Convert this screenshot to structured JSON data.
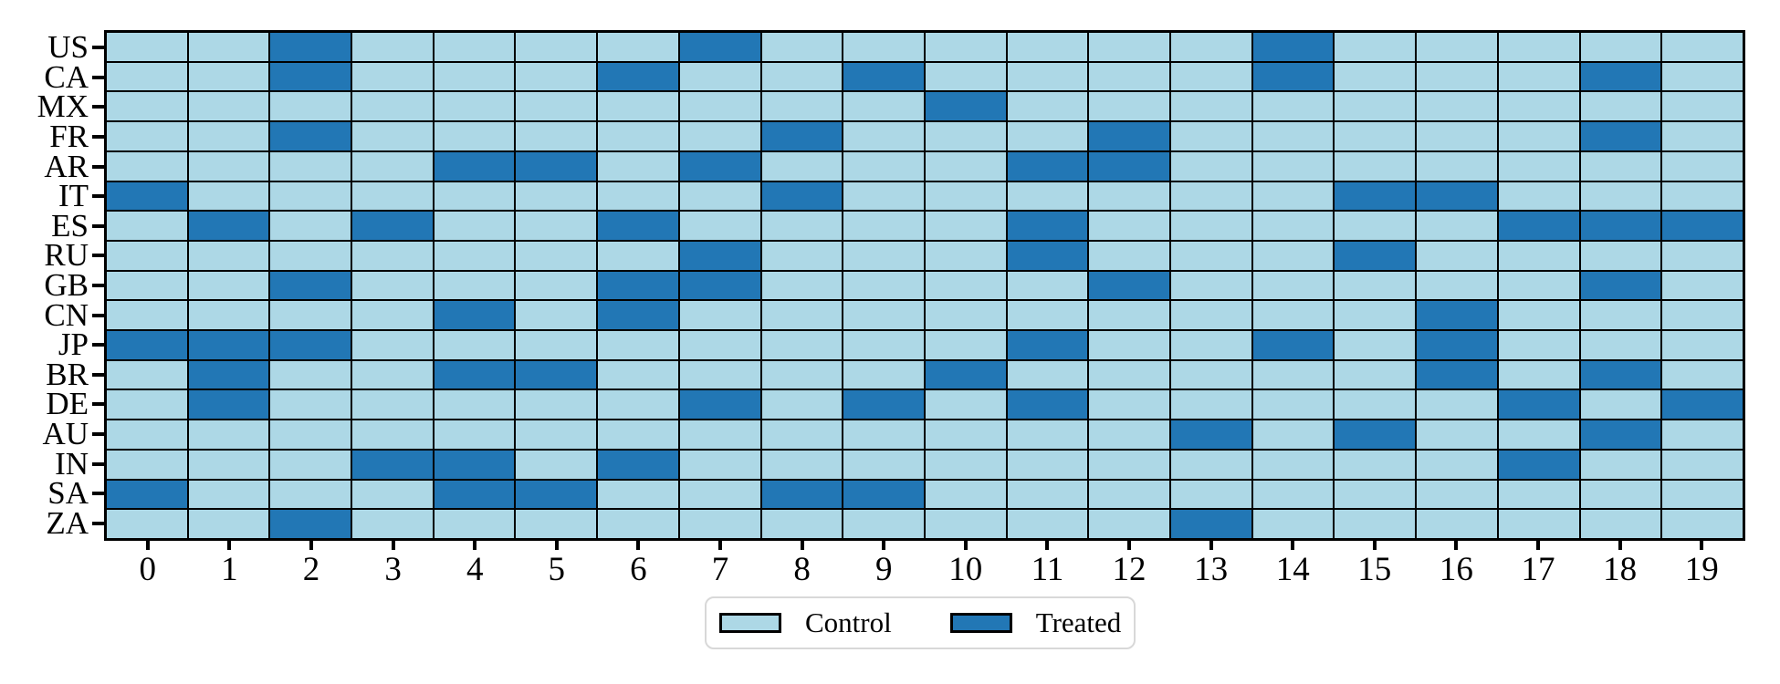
{
  "colors": {
    "control": "#add8e6",
    "treated": "#2277b5",
    "cell_edge": "#000000",
    "frame": "#000000",
    "background": "#ffffff",
    "legend_border": "#d8d8d8"
  },
  "chart_data": {
    "type": "heatmap",
    "title": "",
    "xlabel": "",
    "ylabel": "",
    "grid": "black cell edges on all cells, black outer frame",
    "legend_position": "bottom-center",
    "rows": [
      "US",
      "CA",
      "MX",
      "FR",
      "AR",
      "IT",
      "ES",
      "RU",
      "GB",
      "CN",
      "JP",
      "BR",
      "DE",
      "AU",
      "IN",
      "SA",
      "ZA"
    ],
    "columns": [
      "0",
      "1",
      "2",
      "3",
      "4",
      "5",
      "6",
      "7",
      "8",
      "9",
      "10",
      "11",
      "12",
      "13",
      "14",
      "15",
      "16",
      "17",
      "18",
      "19"
    ],
    "value_meaning": {
      "0": "Control",
      "1": "Treated"
    },
    "legend": {
      "entries": [
        {
          "label": "Control",
          "color": "#add8e6"
        },
        {
          "label": "Treated",
          "color": "#2277b5"
        }
      ]
    },
    "matrix": [
      [
        0,
        0,
        1,
        0,
        0,
        0,
        0,
        1,
        0,
        0,
        0,
        0,
        0,
        0,
        1,
        0,
        0,
        0,
        0,
        0
      ],
      [
        0,
        0,
        1,
        0,
        0,
        0,
        1,
        0,
        0,
        1,
        0,
        0,
        0,
        0,
        1,
        0,
        0,
        0,
        1,
        0
      ],
      [
        0,
        0,
        0,
        0,
        0,
        0,
        0,
        0,
        0,
        0,
        1,
        0,
        0,
        0,
        0,
        0,
        0,
        0,
        0,
        0
      ],
      [
        0,
        0,
        1,
        0,
        0,
        0,
        0,
        0,
        1,
        0,
        0,
        0,
        1,
        0,
        0,
        0,
        0,
        0,
        1,
        0
      ],
      [
        0,
        0,
        0,
        0,
        1,
        1,
        0,
        1,
        0,
        0,
        0,
        1,
        1,
        0,
        0,
        0,
        0,
        0,
        0,
        0
      ],
      [
        1,
        0,
        0,
        0,
        0,
        0,
        0,
        0,
        1,
        0,
        0,
        0,
        0,
        0,
        0,
        1,
        1,
        0,
        0,
        0
      ],
      [
        0,
        1,
        0,
        1,
        0,
        0,
        1,
        0,
        0,
        0,
        0,
        1,
        0,
        0,
        0,
        0,
        0,
        1,
        1,
        1
      ],
      [
        0,
        0,
        0,
        0,
        0,
        0,
        0,
        1,
        0,
        0,
        0,
        1,
        0,
        0,
        0,
        1,
        0,
        0,
        0,
        0
      ],
      [
        0,
        0,
        1,
        0,
        0,
        0,
        1,
        1,
        0,
        0,
        0,
        0,
        1,
        0,
        0,
        0,
        0,
        0,
        1,
        0
      ],
      [
        0,
        0,
        0,
        0,
        1,
        0,
        1,
        0,
        0,
        0,
        0,
        0,
        0,
        0,
        0,
        0,
        1,
        0,
        0,
        0
      ],
      [
        1,
        1,
        1,
        0,
        0,
        0,
        0,
        0,
        0,
        0,
        0,
        1,
        0,
        0,
        1,
        0,
        1,
        0,
        0,
        0
      ],
      [
        0,
        1,
        0,
        0,
        1,
        1,
        0,
        0,
        0,
        0,
        1,
        0,
        0,
        0,
        0,
        0,
        1,
        0,
        1,
        0
      ],
      [
        0,
        1,
        0,
        0,
        0,
        0,
        0,
        1,
        0,
        1,
        0,
        1,
        0,
        0,
        0,
        0,
        0,
        1,
        0,
        1
      ],
      [
        0,
        0,
        0,
        0,
        0,
        0,
        0,
        0,
        0,
        0,
        0,
        0,
        0,
        1,
        0,
        1,
        0,
        0,
        1,
        0
      ],
      [
        0,
        0,
        0,
        1,
        1,
        0,
        1,
        0,
        0,
        0,
        0,
        0,
        0,
        0,
        0,
        0,
        0,
        1,
        0,
        0
      ],
      [
        1,
        0,
        0,
        0,
        1,
        1,
        0,
        0,
        1,
        1,
        0,
        0,
        0,
        0,
        0,
        0,
        0,
        0,
        0,
        0
      ],
      [
        0,
        0,
        1,
        0,
        0,
        0,
        0,
        0,
        0,
        0,
        0,
        0,
        0,
        1,
        0,
        0,
        0,
        0,
        0,
        0
      ]
    ],
    "treated_columns_by_row": {
      "US": [
        2,
        7,
        14
      ],
      "CA": [
        2,
        6,
        9,
        14,
        18
      ],
      "MX": [
        10
      ],
      "FR": [
        2,
        8,
        12,
        18
      ],
      "AR": [
        4,
        5,
        7,
        11,
        12
      ],
      "IT": [
        0,
        8,
        15,
        16
      ],
      "ES": [
        1,
        3,
        6,
        11,
        17,
        18,
        19
      ],
      "RU": [
        7,
        11,
        15
      ],
      "GB": [
        2,
        6,
        7,
        12,
        18
      ],
      "CN": [
        4,
        6,
        16
      ],
      "JP": [
        0,
        1,
        2,
        11,
        14,
        16
      ],
      "BR": [
        1,
        4,
        5,
        10,
        16,
        18
      ],
      "DE": [
        1,
        7,
        9,
        11,
        17,
        19
      ],
      "AU": [
        13,
        15,
        18
      ],
      "IN": [
        3,
        4,
        6,
        17
      ],
      "SA": [
        0,
        4,
        5,
        8,
        9
      ],
      "ZA": [
        2,
        13
      ]
    }
  }
}
